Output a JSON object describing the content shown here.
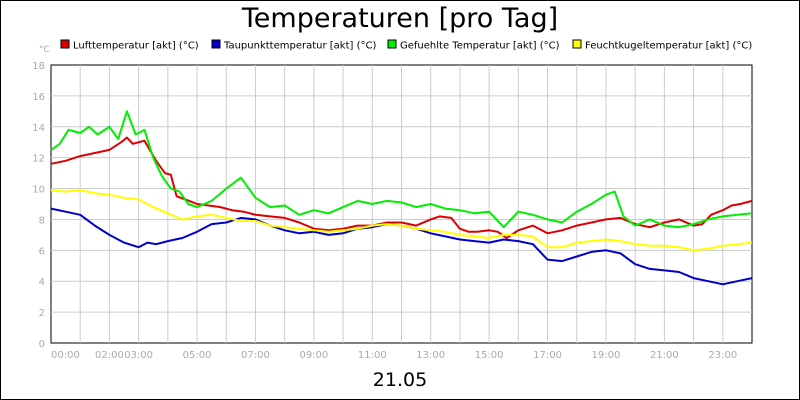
{
  "chart_data": {
    "type": "line",
    "title": "Temperaturen [pro Tag]",
    "ylabel": "°C",
    "xlabel": "21.05",
    "ylim": [
      0,
      18
    ],
    "xlim": [
      0,
      24
    ],
    "yticks": [
      0,
      2,
      4,
      6,
      8,
      10,
      12,
      14,
      16,
      18
    ],
    "xticks": [
      {
        "v": 0,
        "label": "00:00"
      },
      {
        "v": 2,
        "label": "02:00"
      },
      {
        "v": 3,
        "label": "03:00"
      },
      {
        "v": 5,
        "label": "05:00"
      },
      {
        "v": 7,
        "label": "07:00"
      },
      {
        "v": 9,
        "label": "09:00"
      },
      {
        "v": 11,
        "label": "11:00"
      },
      {
        "v": 13,
        "label": "13:00"
      },
      {
        "v": 15,
        "label": "15:00"
      },
      {
        "v": 17,
        "label": "17:00"
      },
      {
        "v": 19,
        "label": "19:00"
      },
      {
        "v": 21,
        "label": "21:00"
      },
      {
        "v": 23,
        "label": "23:00"
      }
    ],
    "grid": true,
    "legend_position": "top",
    "series": [
      {
        "name": "Lufttemperatur [akt] (°C)",
        "color": "#dd0000",
        "points": [
          [
            0,
            11.6
          ],
          [
            0.5,
            11.8
          ],
          [
            1,
            12.1
          ],
          [
            1.5,
            12.3
          ],
          [
            2,
            12.5
          ],
          [
            2.4,
            13.0
          ],
          [
            2.6,
            13.3
          ],
          [
            2.8,
            12.9
          ],
          [
            3.2,
            13.1
          ],
          [
            3.6,
            11.8
          ],
          [
            3.9,
            11.0
          ],
          [
            4.1,
            10.9
          ],
          [
            4.3,
            9.5
          ],
          [
            4.6,
            9.3
          ],
          [
            5.0,
            9.0
          ],
          [
            5.4,
            8.9
          ],
          [
            5.8,
            8.8
          ],
          [
            6.2,
            8.6
          ],
          [
            6.6,
            8.5
          ],
          [
            7.0,
            8.3
          ],
          [
            7.5,
            8.2
          ],
          [
            8.0,
            8.1
          ],
          [
            8.5,
            7.8
          ],
          [
            9.0,
            7.4
          ],
          [
            9.5,
            7.3
          ],
          [
            10.0,
            7.4
          ],
          [
            10.5,
            7.6
          ],
          [
            11.0,
            7.6
          ],
          [
            11.5,
            7.8
          ],
          [
            12.0,
            7.8
          ],
          [
            12.5,
            7.6
          ],
          [
            13.0,
            8.0
          ],
          [
            13.3,
            8.2
          ],
          [
            13.7,
            8.1
          ],
          [
            14.0,
            7.4
          ],
          [
            14.3,
            7.2
          ],
          [
            14.6,
            7.2
          ],
          [
            15.0,
            7.3
          ],
          [
            15.3,
            7.2
          ],
          [
            15.6,
            6.8
          ],
          [
            16.0,
            7.3
          ],
          [
            16.5,
            7.6
          ],
          [
            17.0,
            7.1
          ],
          [
            17.5,
            7.3
          ],
          [
            18.0,
            7.6
          ],
          [
            18.5,
            7.8
          ],
          [
            19.0,
            8.0
          ],
          [
            19.5,
            8.1
          ],
          [
            20.0,
            7.7
          ],
          [
            20.5,
            7.5
          ],
          [
            21.0,
            7.8
          ],
          [
            21.5,
            8.0
          ],
          [
            22.0,
            7.6
          ],
          [
            22.3,
            7.7
          ],
          [
            22.6,
            8.3
          ],
          [
            23.0,
            8.6
          ],
          [
            23.3,
            8.9
          ],
          [
            23.6,
            9.0
          ],
          [
            24.0,
            9.2
          ]
        ]
      },
      {
        "name": "Taupunkttemperatur [akt] (°C)",
        "color": "#0000cc",
        "points": [
          [
            0,
            8.7
          ],
          [
            0.5,
            8.5
          ],
          [
            1,
            8.3
          ],
          [
            1.5,
            7.6
          ],
          [
            2.0,
            7.0
          ],
          [
            2.5,
            6.5
          ],
          [
            3.0,
            6.2
          ],
          [
            3.3,
            6.5
          ],
          [
            3.6,
            6.4
          ],
          [
            4.0,
            6.6
          ],
          [
            4.5,
            6.8
          ],
          [
            5.0,
            7.2
          ],
          [
            5.5,
            7.7
          ],
          [
            6.0,
            7.8
          ],
          [
            6.5,
            8.1
          ],
          [
            7.0,
            8.0
          ],
          [
            7.5,
            7.6
          ],
          [
            8.0,
            7.3
          ],
          [
            8.5,
            7.1
          ],
          [
            9.0,
            7.2
          ],
          [
            9.5,
            7.0
          ],
          [
            10.0,
            7.1
          ],
          [
            10.5,
            7.4
          ],
          [
            11.0,
            7.5
          ],
          [
            11.5,
            7.7
          ],
          [
            12.0,
            7.6
          ],
          [
            12.5,
            7.4
          ],
          [
            13.0,
            7.1
          ],
          [
            13.5,
            6.9
          ],
          [
            14.0,
            6.7
          ],
          [
            14.5,
            6.6
          ],
          [
            15.0,
            6.5
          ],
          [
            15.5,
            6.7
          ],
          [
            16.0,
            6.6
          ],
          [
            16.5,
            6.4
          ],
          [
            17.0,
            5.4
          ],
          [
            17.5,
            5.3
          ],
          [
            18.0,
            5.6
          ],
          [
            18.5,
            5.9
          ],
          [
            19.0,
            6.0
          ],
          [
            19.5,
            5.8
          ],
          [
            20.0,
            5.1
          ],
          [
            20.5,
            4.8
          ],
          [
            21.0,
            4.7
          ],
          [
            21.5,
            4.6
          ],
          [
            22.0,
            4.2
          ],
          [
            22.5,
            4.0
          ],
          [
            23.0,
            3.8
          ],
          [
            23.5,
            4.0
          ],
          [
            24.0,
            4.2
          ]
        ]
      },
      {
        "name": "Gefuehlte Temperatur [akt] (°C)",
        "color": "#00ee00",
        "points": [
          [
            0,
            12.5
          ],
          [
            0.3,
            12.9
          ],
          [
            0.6,
            13.8
          ],
          [
            1.0,
            13.6
          ],
          [
            1.3,
            14.0
          ],
          [
            1.6,
            13.5
          ],
          [
            2.0,
            14.0
          ],
          [
            2.3,
            13.2
          ],
          [
            2.6,
            15.0
          ],
          [
            2.9,
            13.5
          ],
          [
            3.2,
            13.8
          ],
          [
            3.5,
            12.0
          ],
          [
            3.8,
            10.8
          ],
          [
            4.1,
            10.0
          ],
          [
            4.4,
            9.8
          ],
          [
            4.7,
            9.0
          ],
          [
            5.0,
            8.8
          ],
          [
            5.5,
            9.2
          ],
          [
            6.0,
            10.0
          ],
          [
            6.5,
            10.7
          ],
          [
            7.0,
            9.4
          ],
          [
            7.5,
            8.8
          ],
          [
            8.0,
            8.9
          ],
          [
            8.5,
            8.3
          ],
          [
            9.0,
            8.6
          ],
          [
            9.5,
            8.4
          ],
          [
            10.0,
            8.8
          ],
          [
            10.5,
            9.2
          ],
          [
            11.0,
            9.0
          ],
          [
            11.5,
            9.2
          ],
          [
            12.0,
            9.1
          ],
          [
            12.5,
            8.8
          ],
          [
            13.0,
            9.0
          ],
          [
            13.5,
            8.7
          ],
          [
            14.0,
            8.6
          ],
          [
            14.5,
            8.4
          ],
          [
            15.0,
            8.5
          ],
          [
            15.5,
            7.5
          ],
          [
            16.0,
            8.5
          ],
          [
            16.5,
            8.3
          ],
          [
            17.0,
            8.0
          ],
          [
            17.5,
            7.8
          ],
          [
            18.0,
            8.5
          ],
          [
            18.5,
            9.0
          ],
          [
            19.0,
            9.6
          ],
          [
            19.3,
            9.8
          ],
          [
            19.6,
            8.2
          ],
          [
            20.0,
            7.6
          ],
          [
            20.5,
            8.0
          ],
          [
            21.0,
            7.6
          ],
          [
            21.5,
            7.5
          ],
          [
            22.0,
            7.7
          ],
          [
            22.5,
            8.0
          ],
          [
            23.0,
            8.2
          ],
          [
            23.5,
            8.3
          ],
          [
            24.0,
            8.4
          ]
        ]
      },
      {
        "name": "Feuchtkugeltemperatur [akt] (°C)",
        "color": "#ffff00",
        "points": [
          [
            0,
            9.9
          ],
          [
            0.5,
            9.8
          ],
          [
            1,
            9.9
          ],
          [
            1.5,
            9.7
          ],
          [
            2.0,
            9.6
          ],
          [
            2.5,
            9.4
          ],
          [
            3.0,
            9.3
          ],
          [
            3.5,
            8.8
          ],
          [
            4.0,
            8.4
          ],
          [
            4.5,
            8.0
          ],
          [
            5.0,
            8.2
          ],
          [
            5.5,
            8.3
          ],
          [
            6.0,
            8.1
          ],
          [
            6.5,
            7.9
          ],
          [
            7.0,
            7.9
          ],
          [
            7.5,
            7.6
          ],
          [
            8.0,
            7.5
          ],
          [
            8.5,
            7.4
          ],
          [
            9.0,
            7.3
          ],
          [
            9.5,
            7.2
          ],
          [
            10.0,
            7.3
          ],
          [
            10.5,
            7.4
          ],
          [
            11.0,
            7.6
          ],
          [
            11.5,
            7.7
          ],
          [
            12.0,
            7.6
          ],
          [
            12.5,
            7.4
          ],
          [
            13.0,
            7.3
          ],
          [
            13.5,
            7.2
          ],
          [
            14.0,
            7.0
          ],
          [
            14.5,
            6.9
          ],
          [
            15.0,
            6.8
          ],
          [
            15.5,
            7.0
          ],
          [
            16.0,
            7.0
          ],
          [
            16.5,
            6.9
          ],
          [
            17.0,
            6.2
          ],
          [
            17.5,
            6.2
          ],
          [
            18.0,
            6.5
          ],
          [
            18.5,
            6.6
          ],
          [
            19.0,
            6.7
          ],
          [
            19.5,
            6.6
          ],
          [
            20.0,
            6.4
          ],
          [
            20.5,
            6.3
          ],
          [
            21.0,
            6.3
          ],
          [
            21.5,
            6.2
          ],
          [
            22.0,
            6.0
          ],
          [
            22.5,
            6.1
          ],
          [
            23.0,
            6.3
          ],
          [
            23.5,
            6.4
          ],
          [
            24.0,
            6.5
          ]
        ]
      }
    ]
  }
}
